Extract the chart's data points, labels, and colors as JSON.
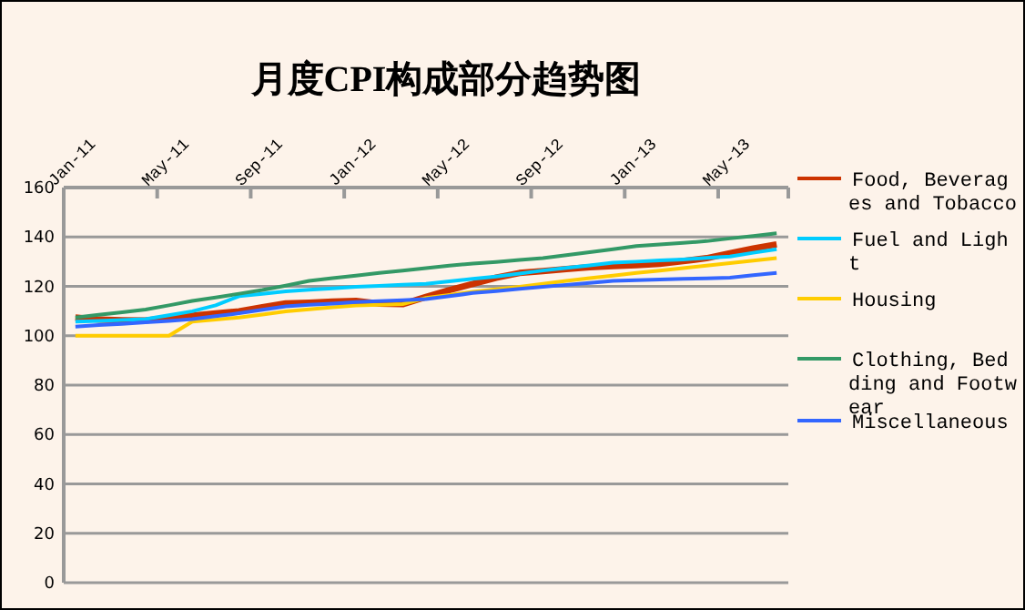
{
  "chart_data": {
    "type": "line",
    "title": "月度CPI构成部分趋势图",
    "categories": [
      "Jan-11",
      null,
      null,
      null,
      "May-11",
      null,
      null,
      null,
      "Sep-11",
      null,
      null,
      null,
      "Jan-12",
      null,
      null,
      null,
      "May-12",
      null,
      null,
      null,
      "Sep-12",
      null,
      null,
      null,
      "Jan-13",
      null,
      null,
      null,
      "May-13",
      null,
      null
    ],
    "series": [
      {
        "name": "Food, Beverages and Tobacco",
        "color": "#cc3300",
        "values": [
          107.4,
          106.5,
          106.3,
          106.2,
          107.2,
          108.1,
          109,
          109.9,
          111.5,
          113.1,
          113.4,
          113.8,
          114.1,
          113,
          112.8,
          115.7,
          118.5,
          121,
          123.5,
          125.4,
          126.2,
          127,
          127.7,
          128.2,
          128.6,
          129.1,
          130.2,
          131.4,
          133.4,
          135.3,
          137
        ]
      },
      {
        "name": "Fuel and Light",
        "color": "#00ccff",
        "values": [
          105.7,
          106,
          106.4,
          106.7,
          108.3,
          109.9,
          112.3,
          116,
          117,
          118,
          118.6,
          119.2,
          119.8,
          120.2,
          120.6,
          121,
          122,
          123,
          124,
          125.2,
          126.4,
          127.5,
          128.5,
          129.6,
          130,
          130.5,
          130.9,
          131.5,
          132.1,
          133.6,
          135
        ]
      },
      {
        "name": "Housing",
        "color": "#ffcc00",
        "values": [
          100,
          100,
          100,
          100,
          100,
          105.7,
          106.5,
          107.4,
          108.6,
          109.9,
          110.7,
          111.5,
          112.3,
          112.5,
          112.8,
          115.3,
          116.5,
          117.8,
          118.8,
          119.8,
          121,
          122.2,
          123.3,
          124.3,
          125.4,
          126.4,
          127.4,
          128.4,
          129.4,
          130.4,
          131.4
        ]
      },
      {
        "name": "Clothing, Bedding and Footwear",
        "color": "#339966",
        "values": [
          107.4,
          108.5,
          109.5,
          110.6,
          112.3,
          114.1,
          115.5,
          117,
          118.5,
          120.3,
          122.2,
          123.3,
          124.3,
          125.4,
          126.4,
          127.4,
          128.4,
          129.2,
          129.9,
          130.7,
          131.4,
          132.6,
          133.8,
          135,
          136.3,
          137,
          137.6,
          138.3,
          139.4,
          140.4,
          141.5
        ]
      },
      {
        "name": "Miscellaneous",
        "color": "#3366ff",
        "values": [
          103.7,
          104.3,
          104.8,
          105.4,
          106,
          106.7,
          107.9,
          109.1,
          110.5,
          111.9,
          112.5,
          113,
          113.6,
          114,
          114.4,
          114.8,
          116,
          117.3,
          118.1,
          119,
          119.8,
          120.6,
          121.4,
          122.2,
          122.5,
          122.8,
          123,
          123.2,
          123.5,
          124.5,
          125.4
        ]
      }
    ],
    "ylim": [
      0,
      160
    ],
    "yticks": [
      0,
      20,
      40,
      60,
      80,
      100,
      120,
      140,
      160
    ],
    "grid": "y",
    "legend": "right",
    "marker": "none",
    "line_style": "solid"
  }
}
